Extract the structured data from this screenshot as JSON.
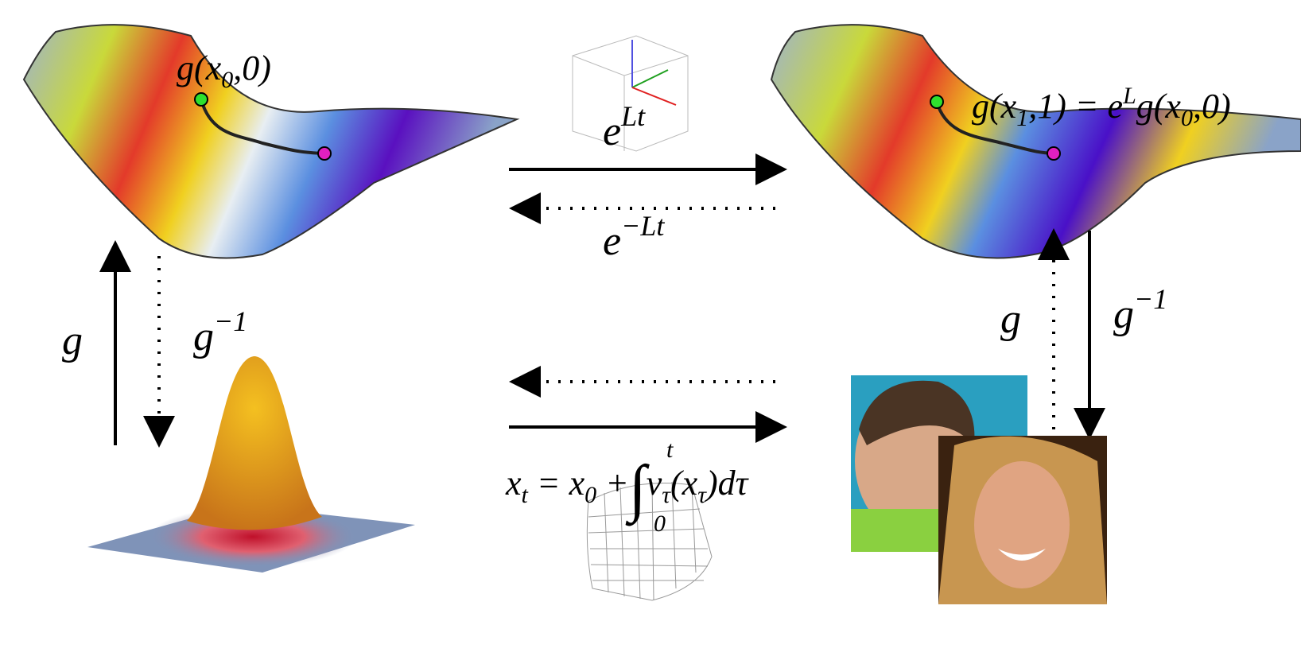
{
  "left_surface": {
    "label": {
      "pre": "g(x",
      "sub": "0",
      "post": ",0)"
    }
  },
  "right_surface": {
    "label": {
      "pre": "g(x",
      "sub1": "1",
      "mid": ",1) = e",
      "sup": "L",
      "mid2": "g(x",
      "sub2": "0",
      "post": ",0)"
    }
  },
  "forward_top": {
    "base": "e",
    "sup": "Lt"
  },
  "backward_top": {
    "base": "e",
    "sup": "−Lt"
  },
  "left_up": "g",
  "left_down": {
    "base": "g",
    "sup": "−1"
  },
  "right_up": "g",
  "right_down": {
    "base": "g",
    "sup": "−1"
  },
  "ode": {
    "x": "x",
    "xsub": "t",
    "eq": " = x",
    "x0sub": "0",
    "plus": " +",
    "integral": "∫",
    "upper": "t",
    "lower": "0",
    "v": "v",
    "vsub": "τ",
    "open": "(x",
    "xtau": "τ",
    "close": ")dτ"
  }
}
